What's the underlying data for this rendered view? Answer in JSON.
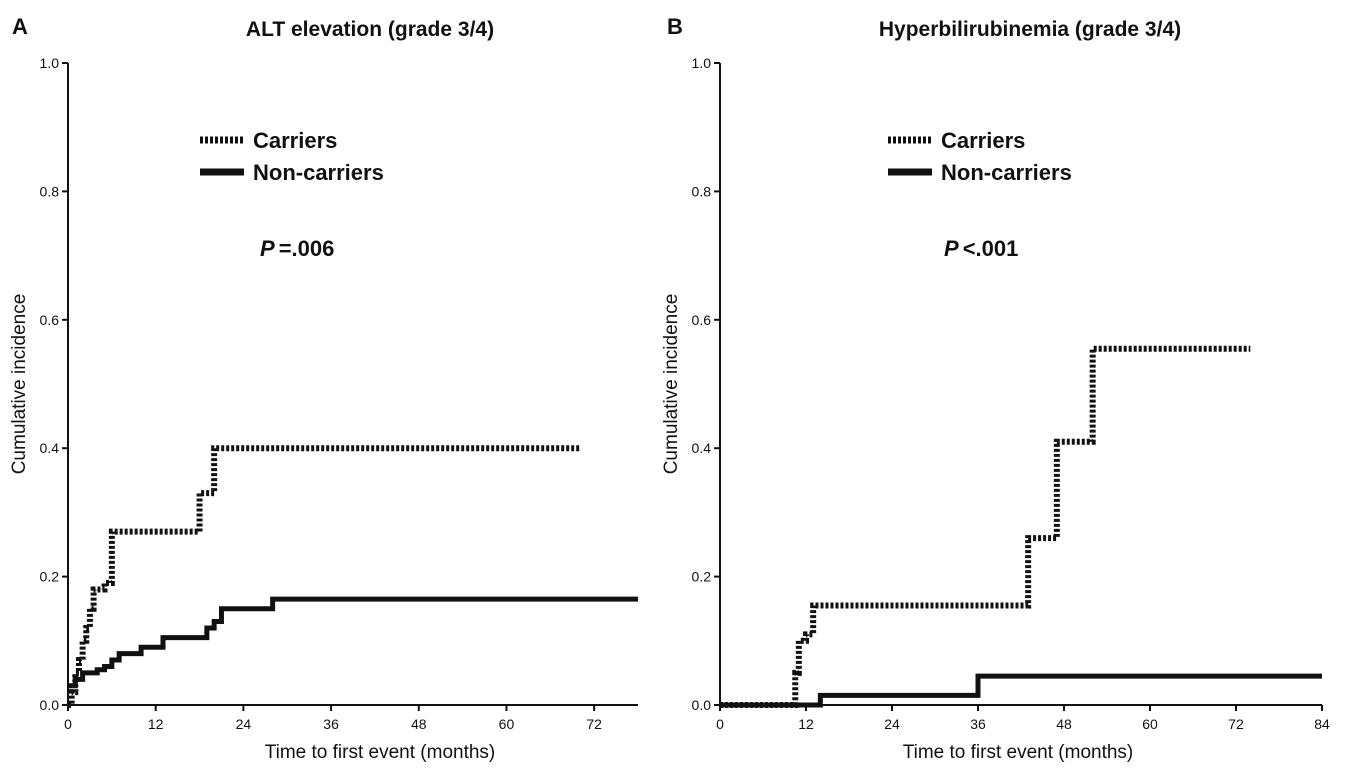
{
  "chart_data": [
    {
      "type": "line",
      "panel_label": "A",
      "title": "ALT elevation (grade 3/4)",
      "xlabel": "Time to first event (months)",
      "ylabel": "Cumulative incidence",
      "xlim": [
        0,
        78
      ],
      "ylim": [
        0,
        1
      ],
      "xticks": [
        "0",
        "12",
        "24",
        "36",
        "48",
        "60",
        "72"
      ],
      "xtick_values": [
        0,
        12,
        24,
        36,
        48,
        60,
        72
      ],
      "yticks": [
        "0.0",
        "0.2",
        "0.4",
        "0.6",
        "0.8",
        "1.0"
      ],
      "ytick_values": [
        0,
        0.2,
        0.4,
        0.6,
        0.8,
        1.0
      ],
      "annotation": {
        "prefix": "P",
        "text": "=.006"
      },
      "legend": {
        "position": "top-center"
      },
      "series": [
        {
          "name": "Carriers",
          "style": "dotted",
          "x": [
            0,
            0.5,
            1,
            1.5,
            2,
            2.5,
            3,
            3.5,
            4,
            5,
            6,
            18,
            19,
            20,
            70
          ],
          "y": [
            0,
            0.02,
            0.05,
            0.07,
            0.1,
            0.12,
            0.15,
            0.18,
            0.18,
            0.19,
            0.27,
            0.33,
            0.33,
            0.4,
            0.4
          ]
        },
        {
          "name": "Non-carriers",
          "style": "solid",
          "x": [
            0,
            0.5,
            1,
            2,
            4,
            5,
            6,
            7,
            10,
            12,
            13,
            19,
            20,
            21,
            22,
            28,
            78
          ],
          "y": [
            0.03,
            0.03,
            0.04,
            0.05,
            0.055,
            0.06,
            0.07,
            0.08,
            0.09,
            0.09,
            0.105,
            0.12,
            0.13,
            0.15,
            0.15,
            0.165,
            0.165
          ]
        }
      ]
    },
    {
      "type": "line",
      "panel_label": "B",
      "title": "Hyperbilirubinemia (grade 3/4)",
      "xlabel": "Time to first event (months)",
      "ylabel": "Cumulative incidence",
      "xlim": [
        0,
        84
      ],
      "ylim": [
        0,
        1
      ],
      "xticks": [
        "0",
        "12",
        "24",
        "36",
        "48",
        "60",
        "72",
        "84"
      ],
      "xtick_values": [
        0,
        12,
        24,
        36,
        48,
        60,
        72,
        84
      ],
      "yticks": [
        "0.0",
        "0.2",
        "0.4",
        "0.6",
        "0.8",
        "1.0"
      ],
      "ytick_values": [
        0,
        0.2,
        0.4,
        0.6,
        0.8,
        1.0
      ],
      "annotation": {
        "prefix": "P",
        "text": "<.001"
      },
      "legend": {
        "position": "top-center"
      },
      "series": [
        {
          "name": "Carriers",
          "style": "dotted",
          "x": [
            0,
            10.5,
            11,
            12,
            13,
            42,
            43,
            47,
            52,
            74
          ],
          "y": [
            0,
            0.05,
            0.1,
            0.11,
            0.155,
            0.155,
            0.26,
            0.41,
            0.555,
            0.555
          ]
        },
        {
          "name": "Non-carriers",
          "style": "solid",
          "x": [
            0,
            14,
            36,
            84
          ],
          "y": [
            0,
            0.015,
            0.045,
            0.045
          ]
        }
      ]
    }
  ]
}
